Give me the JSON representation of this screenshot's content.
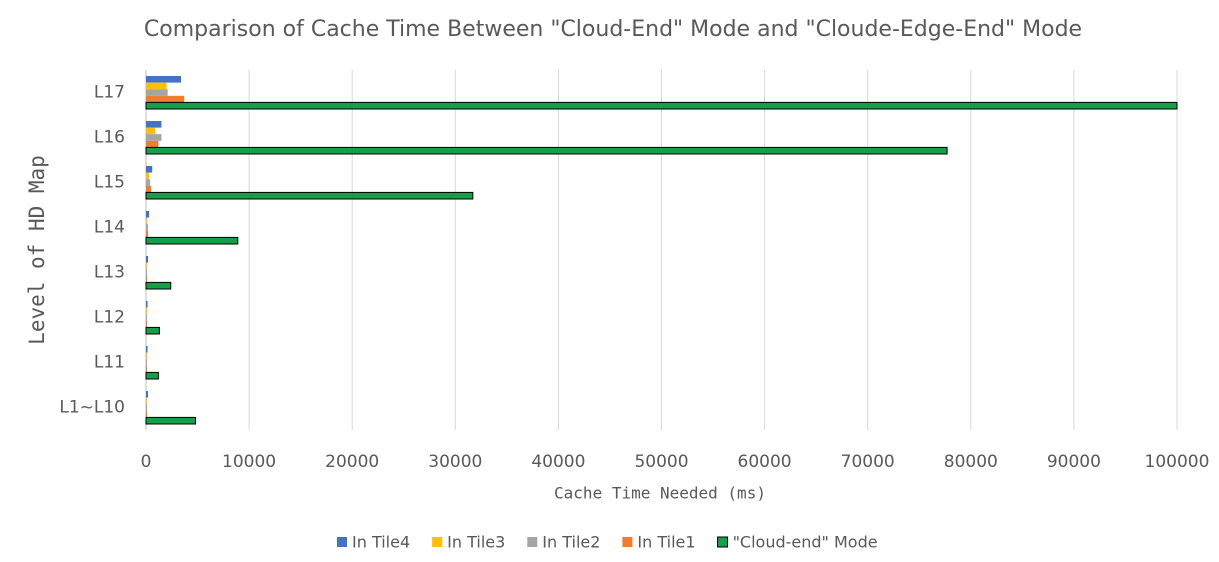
{
  "chart_data": {
    "type": "hbar",
    "title": "Comparison of Cache Time Between \"Cloud-End\" Mode and \"Cloude-Edge-End\" Mode",
    "x_label": "Cache Time Needed (ms)",
    "y_label": "Level of HD Map",
    "categories": [
      "L17",
      "L16",
      "L15",
      "L14",
      "L13",
      "L12",
      "L11",
      "L1~L10"
    ],
    "series": [
      {
        "name": "In Tile4",
        "color": "#4472c4",
        "values": [
          3400,
          1500,
          600,
          300,
          200,
          150,
          150,
          200
        ]
      },
      {
        "name": "In Tile3",
        "color": "#ffc000",
        "values": [
          2000,
          900,
          300,
          100,
          100,
          100,
          100,
          100
        ]
      },
      {
        "name": "In Tile2",
        "color": "#a5a5a5",
        "values": [
          2100,
          1500,
          400,
          200,
          100,
          100,
          100,
          100
        ]
      },
      {
        "name": "In Tile1",
        "color": "#ed7d31",
        "values": [
          3700,
          1200,
          500,
          200,
          100,
          100,
          100,
          100
        ]
      },
      {
        "name": "\"Cloud-end\" Mode",
        "color": "#13a049",
        "values": [
          100000,
          77700,
          31700,
          8900,
          2400,
          1300,
          1200,
          4800
        ]
      }
    ],
    "xlim": [
      0,
      100000
    ],
    "xticks": [
      0,
      10000,
      20000,
      30000,
      40000,
      50000,
      60000,
      70000,
      80000,
      90000,
      100000
    ],
    "grid": true,
    "legend": "bottom"
  }
}
